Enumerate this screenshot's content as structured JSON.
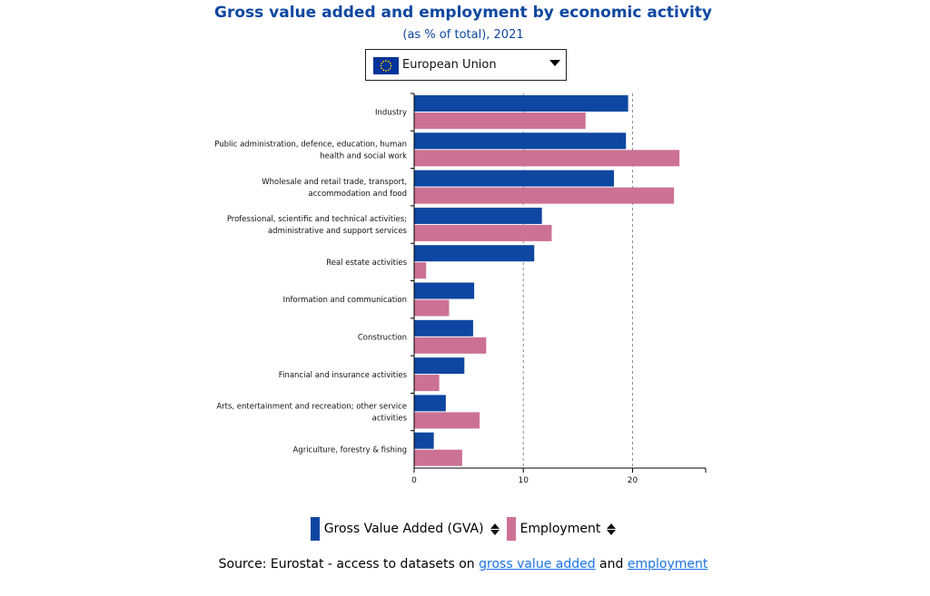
{
  "header": {
    "title": "Gross value added and employment by economic activity",
    "subtitle": "(as % of total), 2021"
  },
  "selector": {
    "value": "European Union",
    "icon": "eu-flag-icon"
  },
  "colors": {
    "gva": "#0e47a1",
    "employment": "#cc7194",
    "title": "#0e47a1",
    "link": "#1a73e8"
  },
  "chart_data": {
    "type": "bar",
    "orientation": "horizontal",
    "categories": [
      [
        "Industry"
      ],
      [
        "Public administration, defence, education, human",
        "health and social work"
      ],
      [
        "Wholesale and retail trade, transport,",
        "accommodation and food"
      ],
      [
        "Professional, scientific and technical activities;",
        "administrative and support services"
      ],
      [
        "Real estate activities"
      ],
      [
        "Information and communication"
      ],
      [
        "Construction"
      ],
      [
        "Financial and insurance activities"
      ],
      [
        "Arts, entertainment and recreation; other service",
        "activities"
      ],
      [
        "Agriculture, forestry & fishing"
      ]
    ],
    "series": [
      {
        "name": "Gross Value Added (GVA)",
        "values": [
          19.6,
          19.4,
          18.3,
          11.7,
          11.0,
          5.5,
          5.4,
          4.6,
          2.9,
          1.8
        ]
      },
      {
        "name": "Employment",
        "values": [
          15.7,
          24.3,
          23.8,
          12.6,
          1.1,
          3.2,
          6.6,
          2.3,
          6.0,
          4.4
        ]
      }
    ],
    "xlim": [
      0,
      26.7
    ],
    "xticks": [
      0,
      10,
      20
    ],
    "grid": "vertical dashed",
    "legend": "bottom"
  },
  "legend": {
    "gva_label": "Gross Value Added (GVA)",
    "employment_label": "Employment"
  },
  "source": {
    "prefix": "Source: Eurostat - access to datasets on ",
    "link1": "gross value added",
    "middle": " and ",
    "link2": "employment"
  }
}
